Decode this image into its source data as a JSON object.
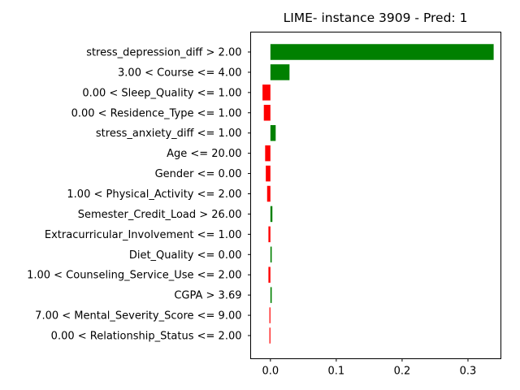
{
  "chart_data": {
    "type": "bar",
    "orientation": "horizontal",
    "title": "LIME- instance 3909 - Pred: 1",
    "xlabel": "",
    "ylabel": "",
    "xlim": [
      -0.03,
      0.35
    ],
    "xticks": [
      0.0,
      0.1,
      0.2,
      0.3
    ],
    "xtick_labels": [
      "0.0",
      "0.1",
      "0.2",
      "0.3"
    ],
    "grid": false,
    "colors": {
      "positive": "#008000",
      "negative": "#ff0000"
    },
    "categories": [
      "stress_depression_diff > 2.00",
      "3.00 < Course <= 4.00",
      "0.00 < Sleep_Quality <= 1.00",
      "0.00 < Residence_Type <= 1.00",
      "stress_anxiety_diff <= 1.00",
      "Age <= 20.00",
      "Gender <= 0.00",
      "1.00 < Physical_Activity <= 2.00",
      "Semester_Credit_Load > 26.00",
      "Extracurricular_Involvement <= 1.00",
      "Diet_Quality <= 0.00",
      "1.00 < Counseling_Service_Use <= 2.00",
      "CGPA > 3.69",
      "7.00 < Mental_Severity_Score <= 9.00",
      "0.00 < Relationship_Status <= 2.00"
    ],
    "values": [
      0.339,
      0.029,
      -0.012,
      -0.01,
      0.008,
      -0.008,
      -0.007,
      -0.005,
      0.003,
      -0.003,
      0.002,
      -0.003,
      0.002,
      -0.0015,
      -0.0015
    ]
  }
}
